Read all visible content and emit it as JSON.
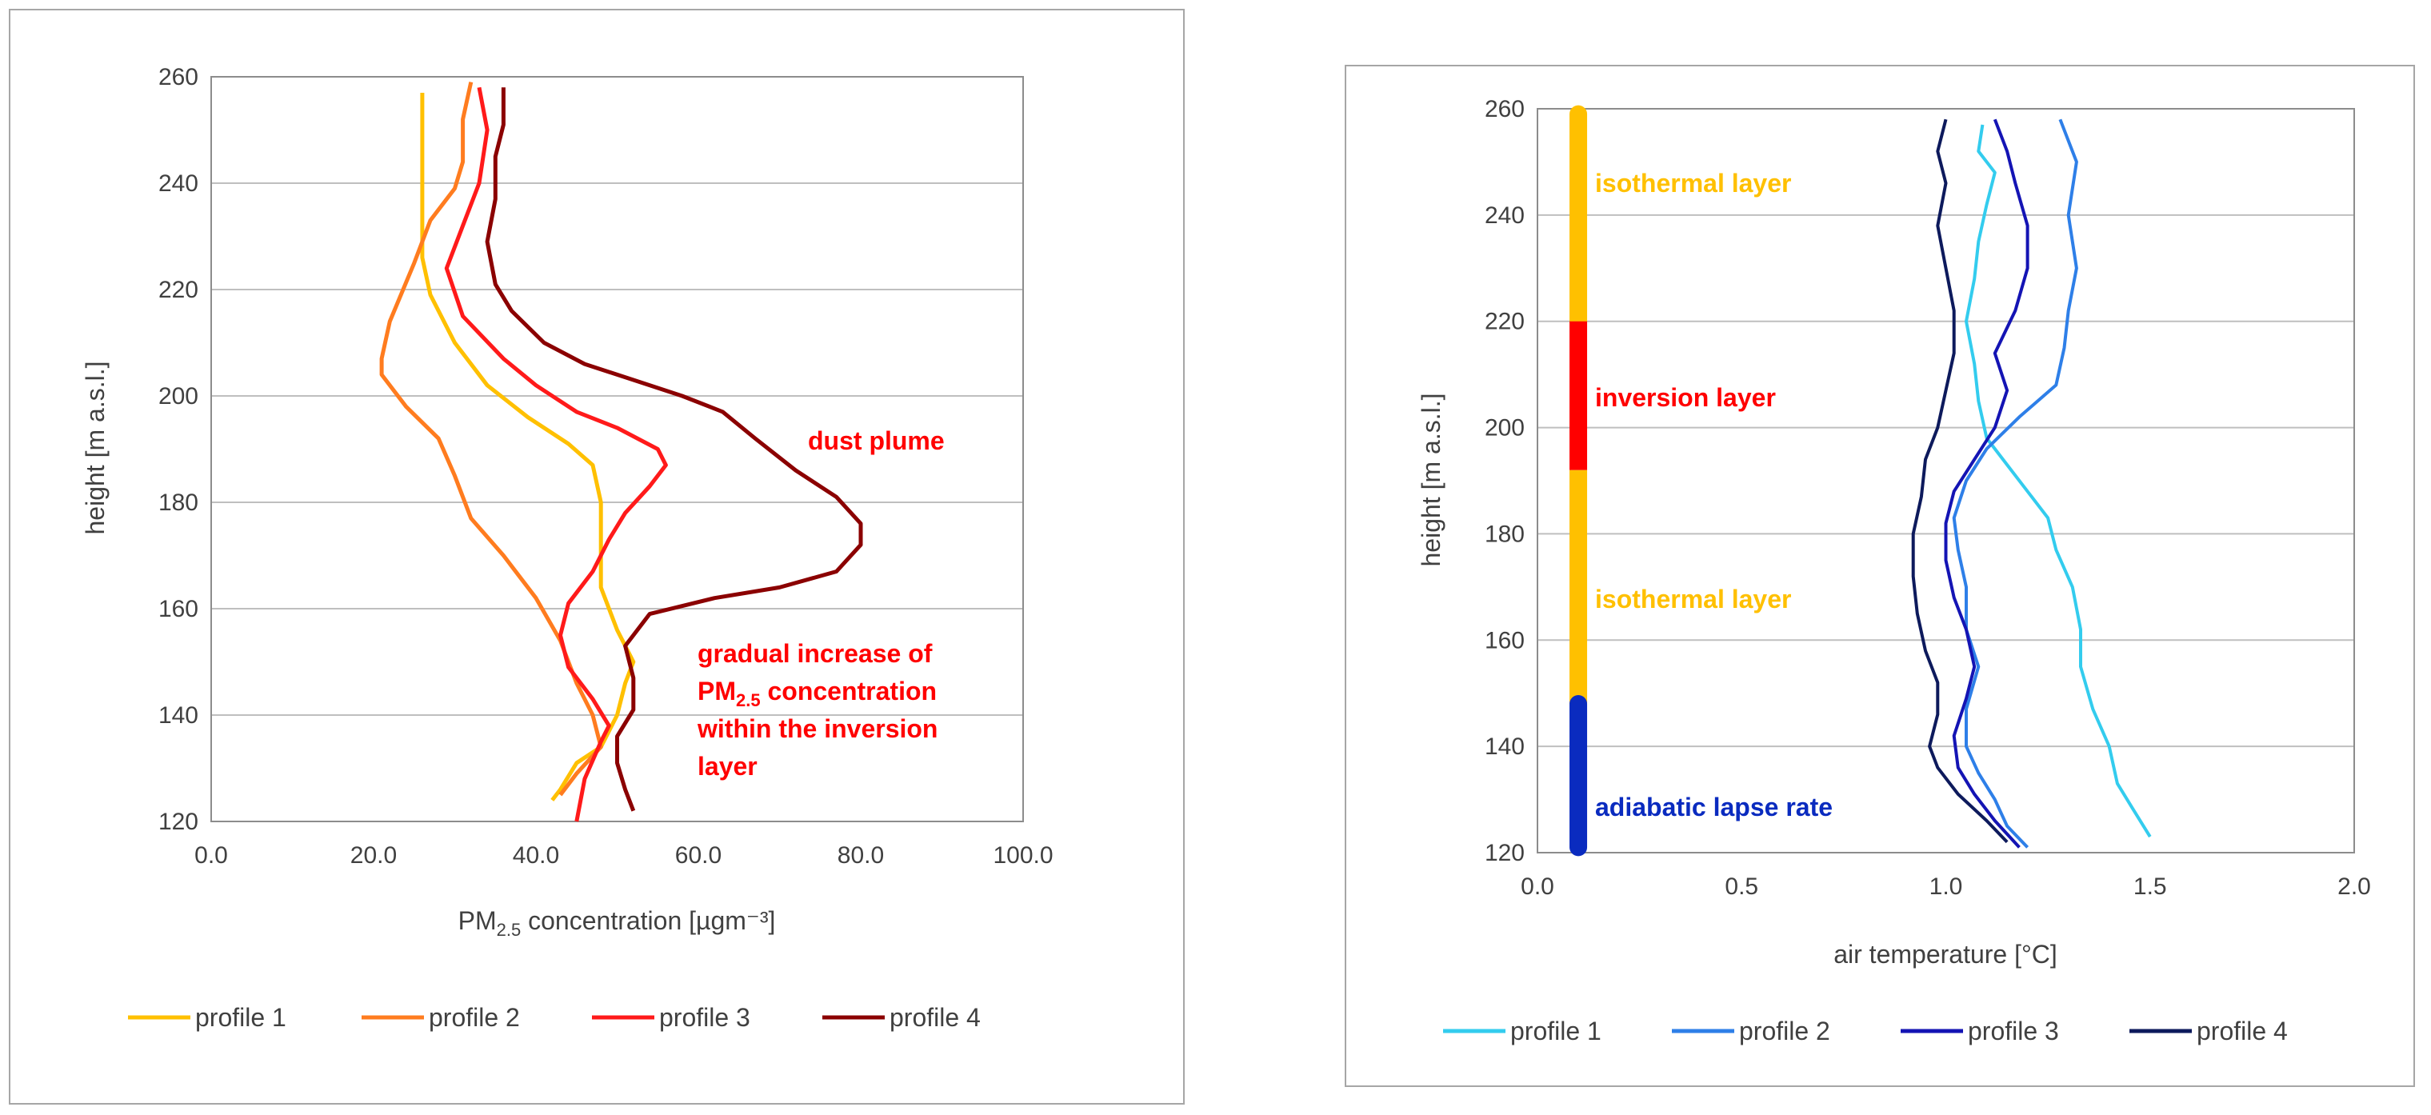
{
  "colors": {
    "left": [
      "#ffc000",
      "#ff7c1f",
      "#ff1a1a",
      "#8b0000"
    ],
    "right": [
      "#33ccee",
      "#2e7fe8",
      "#1414b4",
      "#0d1a5c"
    ],
    "isothermal": "#ffc000",
    "inversion": "#ff0000",
    "adiabatic": "#0a2bbf",
    "anno_red": "#ff0000",
    "anno_blue": "#0a2bbf"
  },
  "chart_data": [
    {
      "type": "line",
      "xlabel": {
        "pre": "PM",
        "sub": "2.5",
        "post": " concentration [µgm⁻³]"
      },
      "ylabel": "height [m a.s.l.]",
      "xlim": [
        0,
        100
      ],
      "ylim": [
        120,
        260
      ],
      "x_tick_labels": [
        "0.0",
        "20.0",
        "40.0",
        "60.0",
        "80.0",
        "100.0"
      ],
      "y_tick_labels": [
        "120",
        "140",
        "160",
        "180",
        "200",
        "220",
        "240",
        "260"
      ],
      "grid": "horizontal",
      "legend_position": "bottom",
      "series": [
        {
          "name": "profile 1",
          "points": [
            [
              42,
              124
            ],
            [
              43,
              126
            ],
            [
              45,
              131
            ],
            [
              48,
              134
            ],
            [
              50,
              140
            ],
            [
              51,
              146
            ],
            [
              52,
              150
            ],
            [
              50,
              156
            ],
            [
              48,
              164
            ],
            [
              48,
              170
            ],
            [
              48,
              180
            ],
            [
              47,
              187
            ],
            [
              44,
              191
            ],
            [
              39,
              196
            ],
            [
              34,
              202
            ],
            [
              30,
              210
            ],
            [
              27,
              219
            ],
            [
              26,
              226
            ],
            [
              26,
              233
            ],
            [
              26,
              240
            ],
            [
              26,
              250
            ],
            [
              26,
              257
            ]
          ]
        },
        {
          "name": "profile 2",
          "points": [
            [
              43,
              125
            ],
            [
              45,
              129
            ],
            [
              48,
              134
            ],
            [
              47,
              140
            ],
            [
              45,
              146
            ],
            [
              43,
              154
            ],
            [
              40,
              162
            ],
            [
              36,
              170
            ],
            [
              32,
              177
            ],
            [
              30,
              185
            ],
            [
              28,
              192
            ],
            [
              24,
              198
            ],
            [
              21,
              204
            ],
            [
              21,
              207
            ],
            [
              22,
              214
            ],
            [
              25,
              225
            ],
            [
              27,
              233
            ],
            [
              30,
              239
            ],
            [
              31,
              244
            ],
            [
              31,
              252
            ],
            [
              32,
              259
            ]
          ]
        },
        {
          "name": "profile 3",
          "points": [
            [
              45,
              120
            ],
            [
              46,
              128
            ],
            [
              48,
              135
            ],
            [
              49,
              138
            ],
            [
              47,
              143
            ],
            [
              44,
              149
            ],
            [
              43,
              155
            ],
            [
              44,
              161
            ],
            [
              47,
              167
            ],
            [
              49,
              173
            ],
            [
              51,
              178
            ],
            [
              54,
              183
            ],
            [
              56,
              187
            ],
            [
              55,
              190
            ],
            [
              50,
              194
            ],
            [
              45,
              197
            ],
            [
              40,
              202
            ],
            [
              36,
              207
            ],
            [
              31,
              215
            ],
            [
              29,
              224
            ],
            [
              31,
              232
            ],
            [
              33,
              240
            ],
            [
              34,
              250
            ],
            [
              33,
              258
            ]
          ]
        },
        {
          "name": "profile 4",
          "points": [
            [
              52,
              122
            ],
            [
              51,
              126
            ],
            [
              50,
              131
            ],
            [
              50,
              136
            ],
            [
              52,
              141
            ],
            [
              52,
              147
            ],
            [
              51,
              153
            ],
            [
              54,
              159
            ],
            [
              62,
              162
            ],
            [
              70,
              164
            ],
            [
              77,
              167
            ],
            [
              80,
              172
            ],
            [
              80,
              176
            ],
            [
              77,
              181
            ],
            [
              72,
              186
            ],
            [
              67,
              192
            ],
            [
              63,
              197
            ],
            [
              58,
              200
            ],
            [
              52,
              203
            ],
            [
              46,
              206
            ],
            [
              41,
              210
            ],
            [
              37,
              216
            ],
            [
              35,
              221
            ],
            [
              34,
              229
            ],
            [
              35,
              237
            ],
            [
              35,
              245
            ],
            [
              36,
              251
            ],
            [
              36,
              258
            ]
          ]
        }
      ],
      "annotations": [
        "dust plume",
        "gradual increase of",
        "PM",
        "2.5",
        " concentration",
        "within the inversion",
        "layer"
      ]
    },
    {
      "type": "line",
      "xlabel": "air temperature [°C]",
      "ylabel": "height [m a.s.l.]",
      "xlim": [
        0,
        2
      ],
      "ylim": [
        120,
        260
      ],
      "x_tick_labels": [
        "0.0",
        "0.5",
        "1.0",
        "1.5",
        "2.0"
      ],
      "y_tick_labels": [
        "120",
        "140",
        "160",
        "180",
        "200",
        "220",
        "240",
        "260"
      ],
      "grid": "horizontal",
      "legend_position": "bottom",
      "layer_bar": [
        {
          "label": "isothermal layer",
          "from": 220,
          "to": 259
        },
        {
          "label": "inversion layer",
          "from": 192,
          "to": 220
        },
        {
          "label": "isothermal layer",
          "from": 148,
          "to": 192
        },
        {
          "label": "adiabatic lapse rate",
          "from": 121,
          "to": 148
        }
      ],
      "series": [
        {
          "name": "profile 1",
          "points": [
            [
              1.5,
              123
            ],
            [
              1.46,
              128
            ],
            [
              1.42,
              133
            ],
            [
              1.4,
              140
            ],
            [
              1.36,
              147
            ],
            [
              1.33,
              155
            ],
            [
              1.33,
              162
            ],
            [
              1.31,
              170
            ],
            [
              1.27,
              177
            ],
            [
              1.25,
              183
            ],
            [
              1.2,
              188
            ],
            [
              1.15,
              193
            ],
            [
              1.1,
              198
            ],
            [
              1.08,
              205
            ],
            [
              1.07,
              212
            ],
            [
              1.05,
              220
            ],
            [
              1.07,
              228
            ],
            [
              1.08,
              235
            ],
            [
              1.1,
              242
            ],
            [
              1.12,
              248
            ],
            [
              1.08,
              252
            ],
            [
              1.09,
              257
            ]
          ]
        },
        {
          "name": "profile 2",
          "points": [
            [
              1.2,
              121
            ],
            [
              1.15,
              125
            ],
            [
              1.12,
              130
            ],
            [
              1.08,
              135
            ],
            [
              1.05,
              140
            ],
            [
              1.05,
              147
            ],
            [
              1.08,
              155
            ],
            [
              1.05,
              162
            ],
            [
              1.05,
              170
            ],
            [
              1.03,
              177
            ],
            [
              1.02,
              183
            ],
            [
              1.05,
              190
            ],
            [
              1.1,
              196
            ],
            [
              1.18,
              202
            ],
            [
              1.27,
              208
            ],
            [
              1.29,
              215
            ],
            [
              1.3,
              222
            ],
            [
              1.32,
              230
            ],
            [
              1.3,
              240
            ],
            [
              1.32,
              250
            ],
            [
              1.28,
              258
            ]
          ]
        },
        {
          "name": "profile 3",
          "points": [
            [
              1.18,
              121
            ],
            [
              1.12,
              126
            ],
            [
              1.07,
              131
            ],
            [
              1.03,
              136
            ],
            [
              1.02,
              142
            ],
            [
              1.05,
              149
            ],
            [
              1.07,
              155
            ],
            [
              1.05,
              162
            ],
            [
              1.02,
              168
            ],
            [
              1.0,
              175
            ],
            [
              1.0,
              182
            ],
            [
              1.02,
              188
            ],
            [
              1.07,
              194
            ],
            [
              1.12,
              200
            ],
            [
              1.15,
              207
            ],
            [
              1.12,
              214
            ],
            [
              1.17,
              222
            ],
            [
              1.2,
              230
            ],
            [
              1.2,
              238
            ],
            [
              1.17,
              246
            ],
            [
              1.15,
              252
            ],
            [
              1.12,
              258
            ]
          ]
        },
        {
          "name": "profile 4",
          "points": [
            [
              1.15,
              122
            ],
            [
              1.1,
              126
            ],
            [
              1.03,
              131
            ],
            [
              0.98,
              136
            ],
            [
              0.96,
              140
            ],
            [
              0.98,
              146
            ],
            [
              0.98,
              152
            ],
            [
              0.95,
              158
            ],
            [
              0.93,
              165
            ],
            [
              0.92,
              172
            ],
            [
              0.92,
              180
            ],
            [
              0.94,
              187
            ],
            [
              0.95,
              194
            ],
            [
              0.98,
              200
            ],
            [
              1.0,
              207
            ],
            [
              1.02,
              214
            ],
            [
              1.02,
              222
            ],
            [
              1.0,
              230
            ],
            [
              0.98,
              238
            ],
            [
              1.0,
              246
            ],
            [
              0.98,
              252
            ],
            [
              1.0,
              258
            ]
          ]
        }
      ]
    }
  ]
}
